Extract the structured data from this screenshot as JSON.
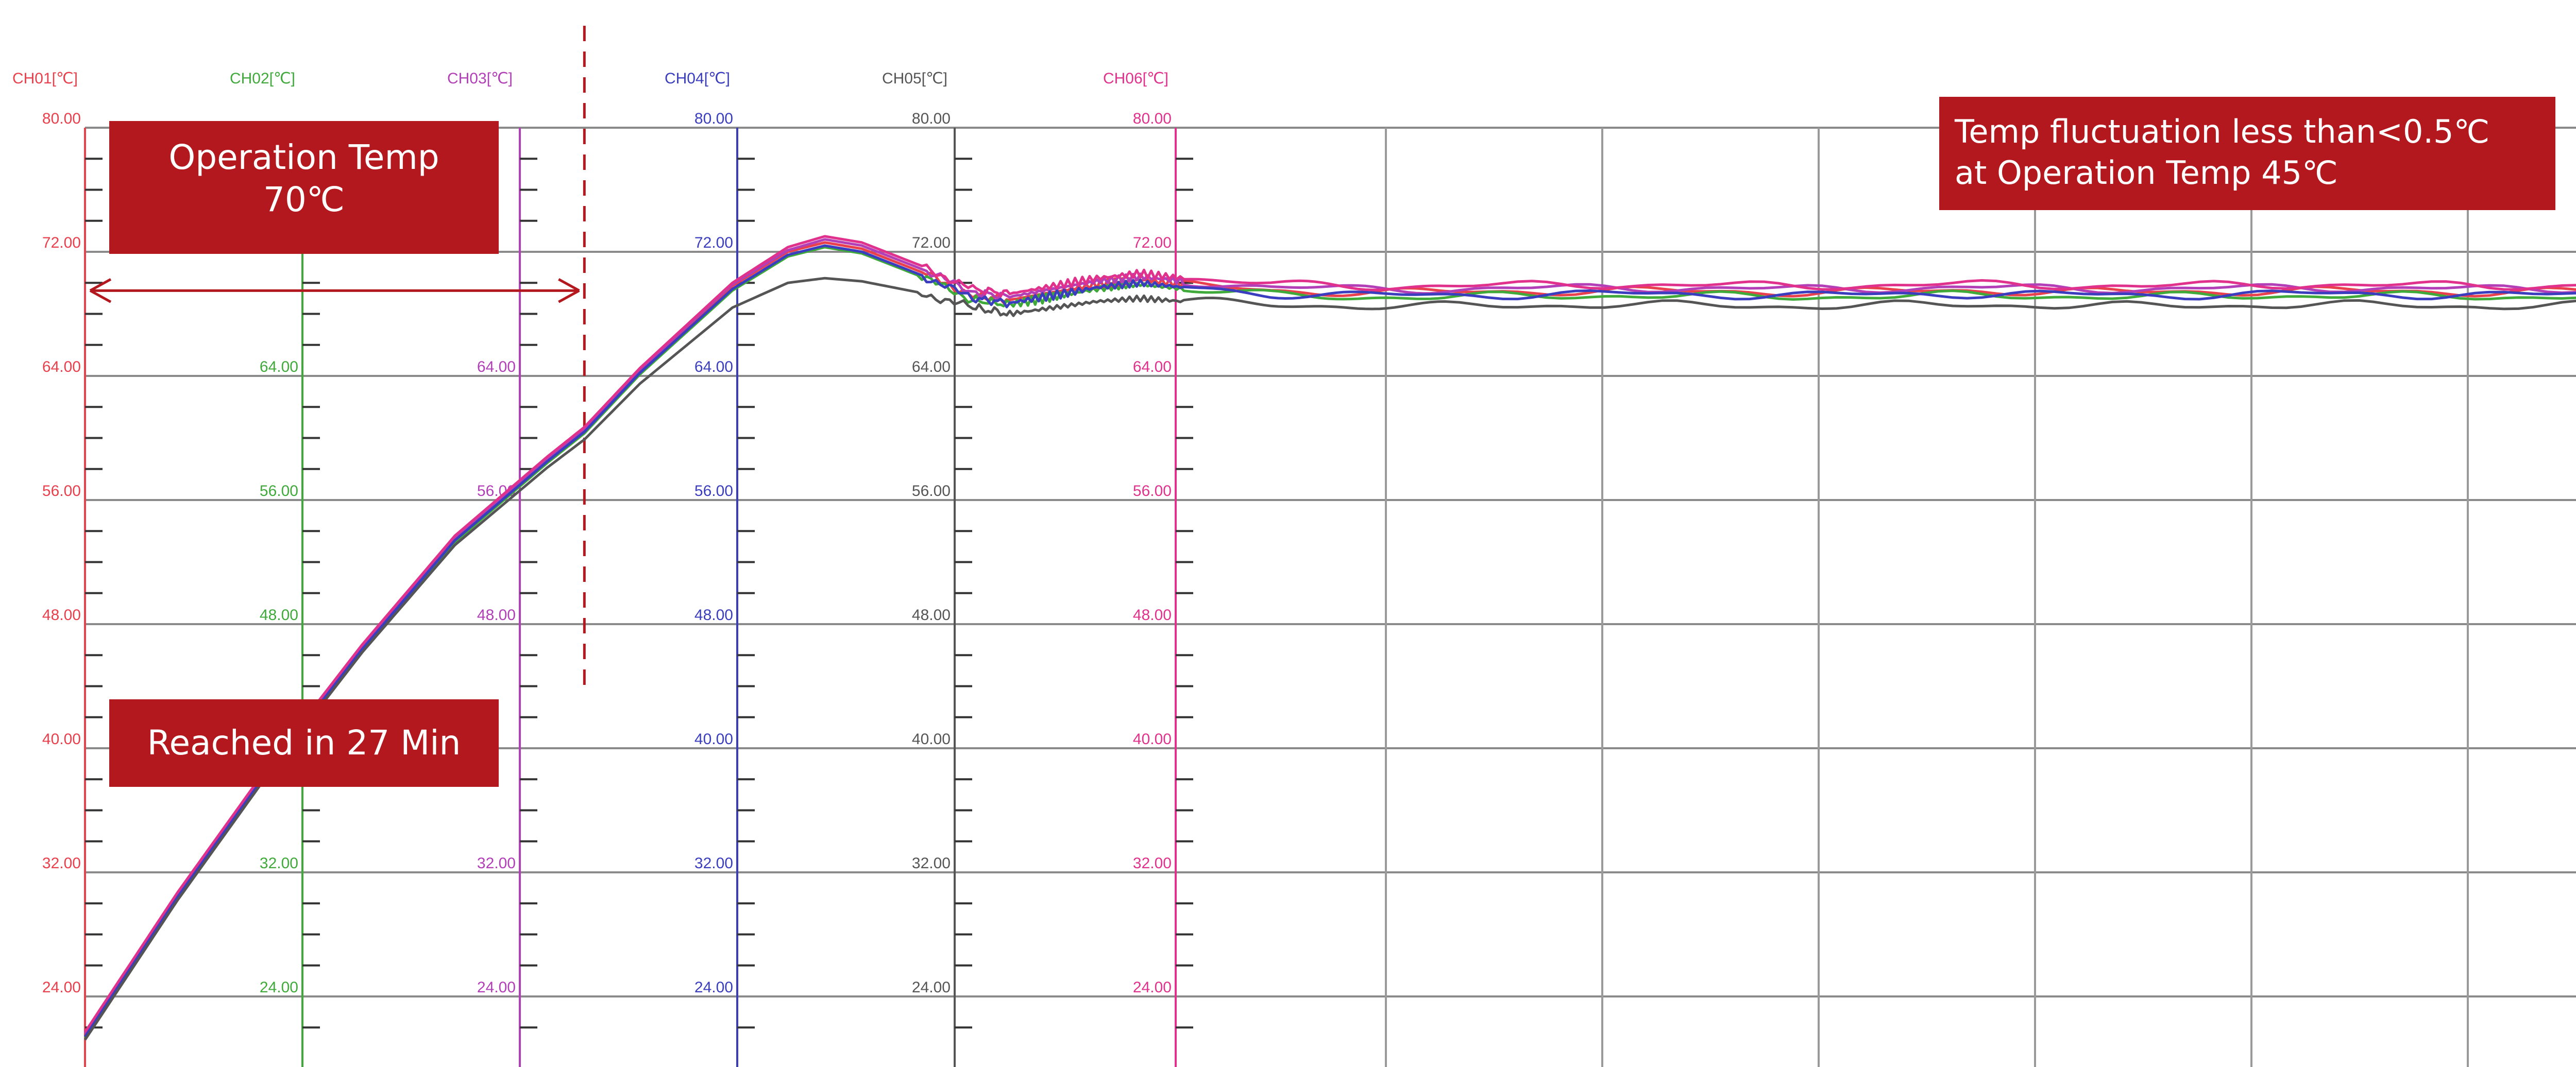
{
  "chart_data": {
    "type": "line",
    "channels": [
      {
        "name": "CH01[℃]",
        "color": "#e8404c"
      },
      {
        "name": "CH02[℃]",
        "color": "#3faa3a"
      },
      {
        "name": "CH03[℃]",
        "color": "#b23fb8"
      },
      {
        "name": "CH04[℃]",
        "color": "#3a3dbd"
      },
      {
        "name": "CH05[℃]",
        "color": "#555555"
      },
      {
        "name": "CH06[℃]",
        "color": "#e0328c"
      }
    ],
    "ylim": [
      20,
      88
    ],
    "yticks": [
      24,
      32,
      40,
      48,
      56,
      64,
      72,
      80
    ],
    "ytick_labels": [
      "24.00",
      "32.00",
      "40.00",
      "48.00",
      "56.00",
      "64.00",
      "72.00",
      "80.00"
    ],
    "axis_label_visibility": [
      [
        true,
        true,
        true,
        true,
        true,
        true,
        true,
        true
      ],
      [
        true,
        true,
        false,
        true,
        true,
        true,
        false,
        false
      ],
      [
        true,
        true,
        false,
        true,
        true,
        true,
        false,
        false
      ],
      [
        true,
        true,
        true,
        true,
        true,
        true,
        true,
        true
      ],
      [
        true,
        true,
        true,
        true,
        true,
        true,
        true,
        true
      ],
      [
        true,
        true,
        true,
        true,
        true,
        true,
        true,
        true
      ]
    ],
    "x": [
      0,
      5,
      10,
      15,
      20,
      25,
      27,
      30,
      35,
      38,
      40,
      42,
      45,
      48,
      50,
      55,
      60,
      65,
      70,
      80,
      90,
      100,
      120,
      140,
      160,
      180,
      200,
      220,
      240
    ],
    "series": [
      {
        "name": "CH01[℃]",
        "values": [
          21.5,
          30.5,
          38.8,
          46.5,
          53.5,
          58.6,
          60.5,
          64.3,
          69.8,
          72.0,
          72.6,
          72.2,
          70.8,
          69.2,
          68.9,
          69.4,
          69.9,
          70.2,
          69.9,
          69.5,
          69.4,
          69.4,
          69.5,
          69.4,
          69.5,
          69.4,
          69.5,
          69.4,
          69.5
        ]
      },
      {
        "name": "CH02[℃]",
        "values": [
          21.3,
          30.3,
          38.6,
          46.3,
          53.3,
          58.4,
          60.3,
          64.1,
          69.5,
          71.7,
          72.3,
          71.9,
          70.5,
          68.9,
          68.6,
          69.1,
          69.6,
          69.9,
          69.6,
          69.2,
          69.1,
          69.1,
          69.2,
          69.1,
          69.2,
          69.1,
          69.2,
          69.1,
          69.2
        ]
      },
      {
        "name": "CH03[℃]",
        "values": [
          21.6,
          30.6,
          38.9,
          46.6,
          53.6,
          58.7,
          60.6,
          64.4,
          69.9,
          72.1,
          72.8,
          72.4,
          71.0,
          69.4,
          69.1,
          69.6,
          70.1,
          70.4,
          70.1,
          69.7,
          69.6,
          69.6,
          69.7,
          69.6,
          69.7,
          69.6,
          69.7,
          69.6,
          69.7
        ]
      },
      {
        "name": "CH04[℃]",
        "values": [
          21.4,
          30.4,
          38.7,
          46.4,
          53.4,
          58.5,
          60.4,
          64.2,
          69.6,
          71.8,
          72.4,
          72.0,
          70.6,
          69.0,
          68.7,
          69.2,
          69.7,
          70.0,
          69.7,
          69.3,
          69.2,
          69.2,
          69.3,
          69.2,
          69.3,
          69.2,
          69.3,
          69.2,
          69.3
        ]
      },
      {
        "name": "CH05[℃]",
        "values": [
          21.2,
          30.2,
          38.5,
          46.2,
          53.1,
          58.1,
          59.9,
          63.5,
          68.4,
          70.0,
          70.3,
          70.1,
          69.4,
          68.4,
          68.0,
          68.4,
          68.8,
          69.0,
          68.8,
          68.6,
          68.5,
          68.5,
          68.6,
          68.5,
          68.6,
          68.5,
          68.6,
          68.5,
          68.6
        ]
      },
      {
        "name": "CH06[℃]",
        "values": [
          21.7,
          30.7,
          39.0,
          46.7,
          53.7,
          58.8,
          60.7,
          64.5,
          70.0,
          72.3,
          73.0,
          72.6,
          71.2,
          69.6,
          69.3,
          69.8,
          70.3,
          70.6,
          70.3,
          69.9,
          69.8,
          69.8,
          69.9,
          69.8,
          69.9,
          69.8,
          69.9,
          69.8,
          69.9
        ]
      }
    ],
    "grid": true,
    "annotations": {
      "operation_temp": [
        "Operation Temp",
        "70℃"
      ],
      "reached": "Reached in 27 Min",
      "fluctuation": [
        "Temp fluctuation less than<0.5℃",
        "at Operation Temp 45℃"
      ]
    }
  }
}
